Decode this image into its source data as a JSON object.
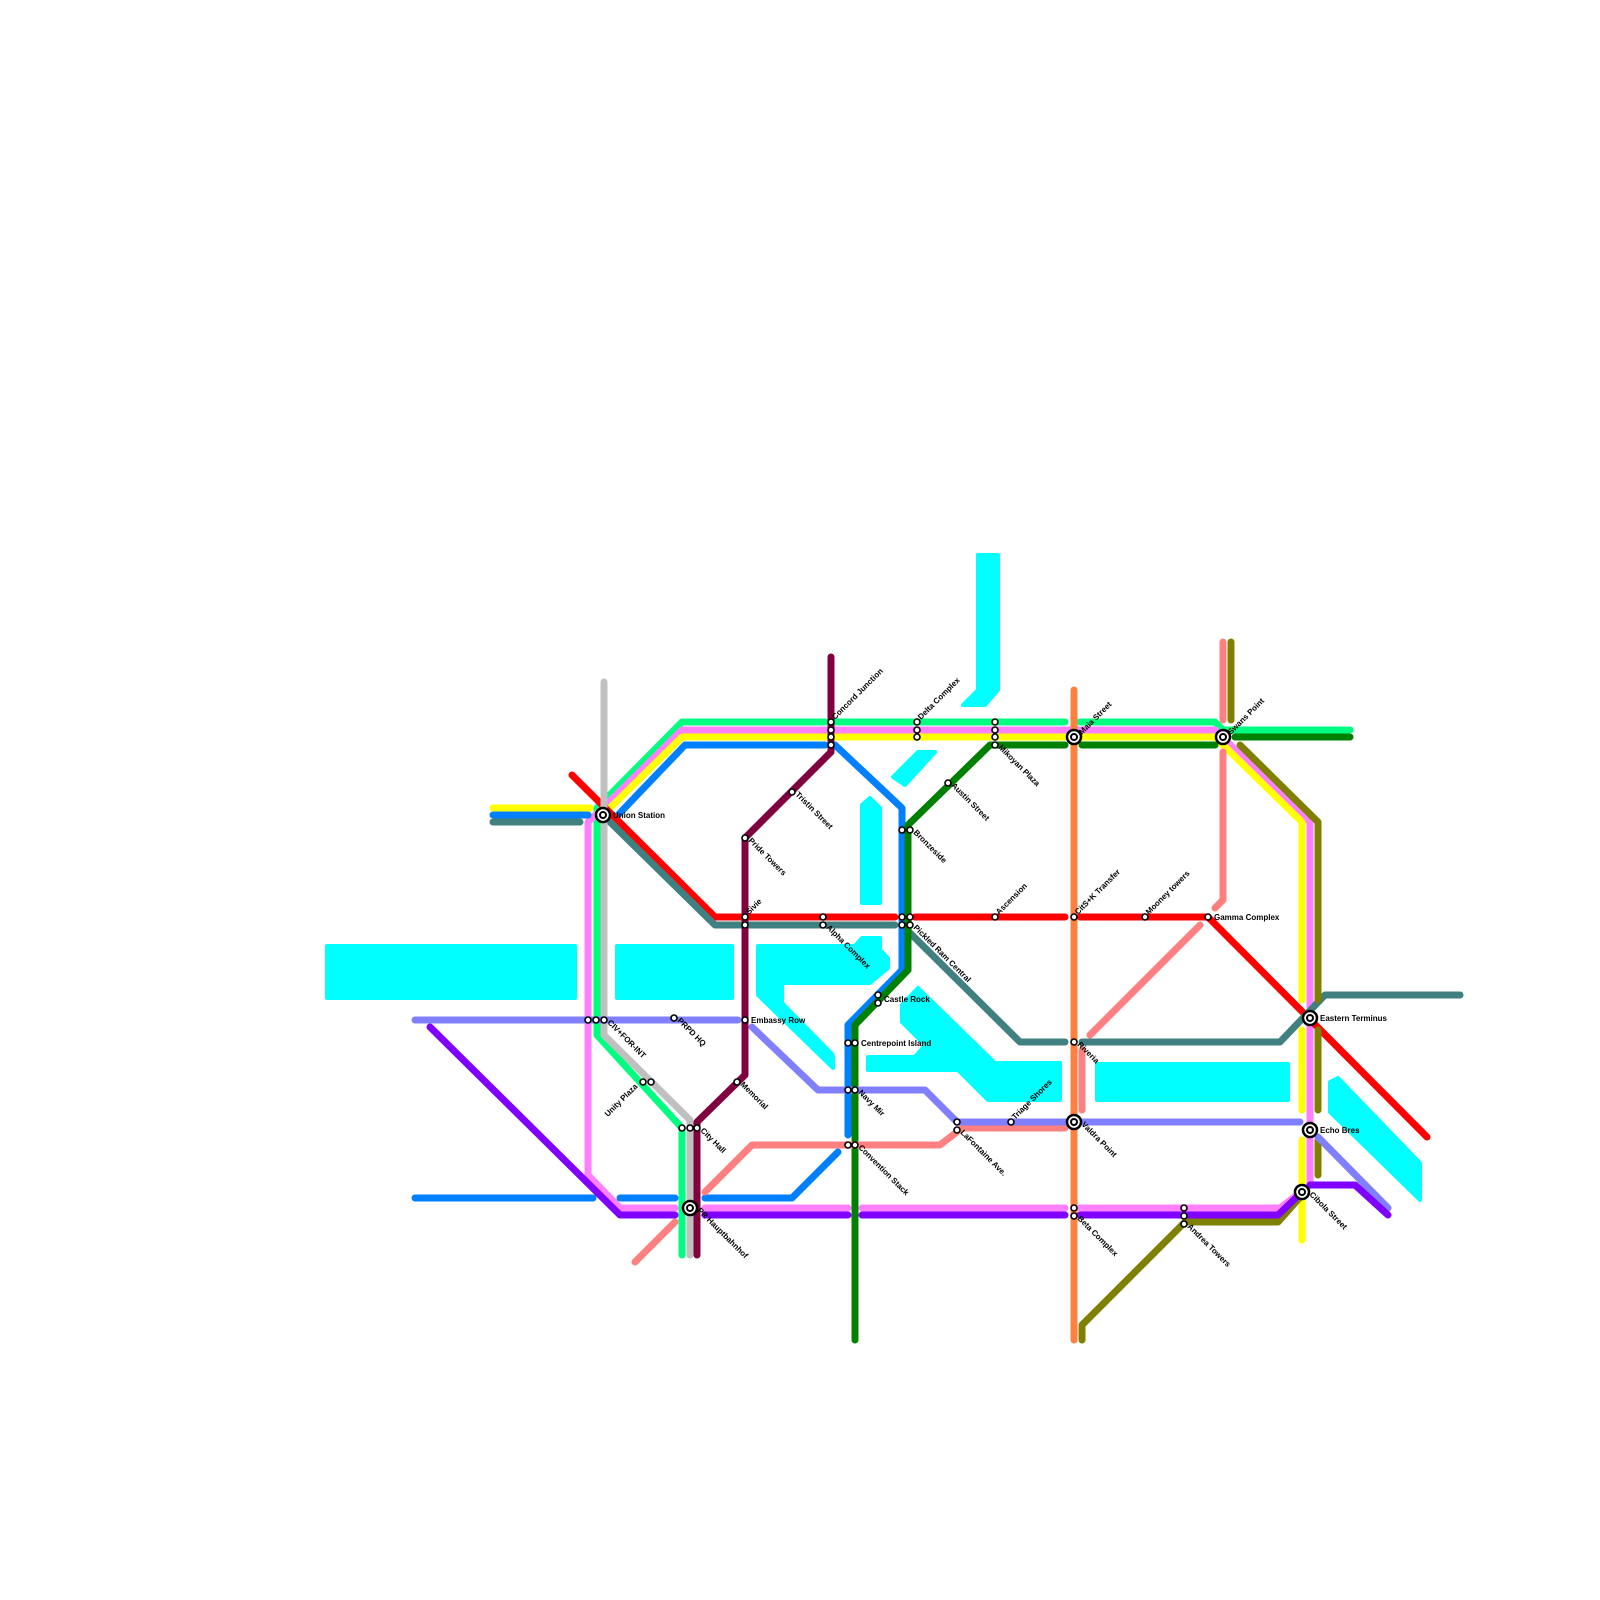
{
  "colors": {
    "water": "#00ffff",
    "background": "#ffffff"
  },
  "lines": [
    {
      "id": "spring-green",
      "color": "#00ff80"
    },
    {
      "id": "pink",
      "color": "#ff80ff"
    },
    {
      "id": "yellow",
      "color": "#ffff00"
    },
    {
      "id": "blue",
      "color": "#0080ff"
    },
    {
      "id": "red",
      "color": "#ff0000"
    },
    {
      "id": "teal",
      "color": "#408080"
    },
    {
      "id": "silver",
      "color": "#c0c0c0"
    },
    {
      "id": "maroon",
      "color": "#800040"
    },
    {
      "id": "dark-green",
      "color": "#008000"
    },
    {
      "id": "orange",
      "color": "#ff8040"
    },
    {
      "id": "salmon",
      "color": "#ff8080"
    },
    {
      "id": "olive",
      "color": "#808000"
    },
    {
      "id": "lavender",
      "color": "#8080ff"
    },
    {
      "id": "purple",
      "color": "#8000ff"
    }
  ],
  "stations": [
    {
      "name": "Union Station"
    },
    {
      "name": "Concord Junction"
    },
    {
      "name": "Delta Complex"
    },
    {
      "name": "Mikoyan Plaza"
    },
    {
      "name": "Maia Street"
    },
    {
      "name": "Swans Point"
    },
    {
      "name": "Austin Street"
    },
    {
      "name": "Tristin Street"
    },
    {
      "name": "Pride Towers"
    },
    {
      "name": "Bronzeside"
    },
    {
      "name": "Sivie"
    },
    {
      "name": "Alpha Complex"
    },
    {
      "name": "Pickled Ram Central"
    },
    {
      "name": "Ascension"
    },
    {
      "name": "CitS+K Transfer"
    },
    {
      "name": "Mooney towers"
    },
    {
      "name": "Gamma Complex"
    },
    {
      "name": "Castle Rock"
    },
    {
      "name": "Embassy Row"
    },
    {
      "name": "PRPD HQ"
    },
    {
      "name": "CIV+FOR-INT"
    },
    {
      "name": "Centrepoint Island"
    },
    {
      "name": "Riveria"
    },
    {
      "name": "Eastern Terminus"
    },
    {
      "name": "Unity Plaza"
    },
    {
      "name": "Memorial"
    },
    {
      "name": "Navy Mir"
    },
    {
      "name": "Triage Shores"
    },
    {
      "name": "City Hall"
    },
    {
      "name": "LaFontaine Ave."
    },
    {
      "name": "Valdra Point"
    },
    {
      "name": "Echo Bres"
    },
    {
      "name": "Convention Stack"
    },
    {
      "name": "PR Hauptbahnhof"
    },
    {
      "name": "Beta Complex"
    },
    {
      "name": "Andrea Towers"
    },
    {
      "name": "Cibola Street"
    }
  ]
}
